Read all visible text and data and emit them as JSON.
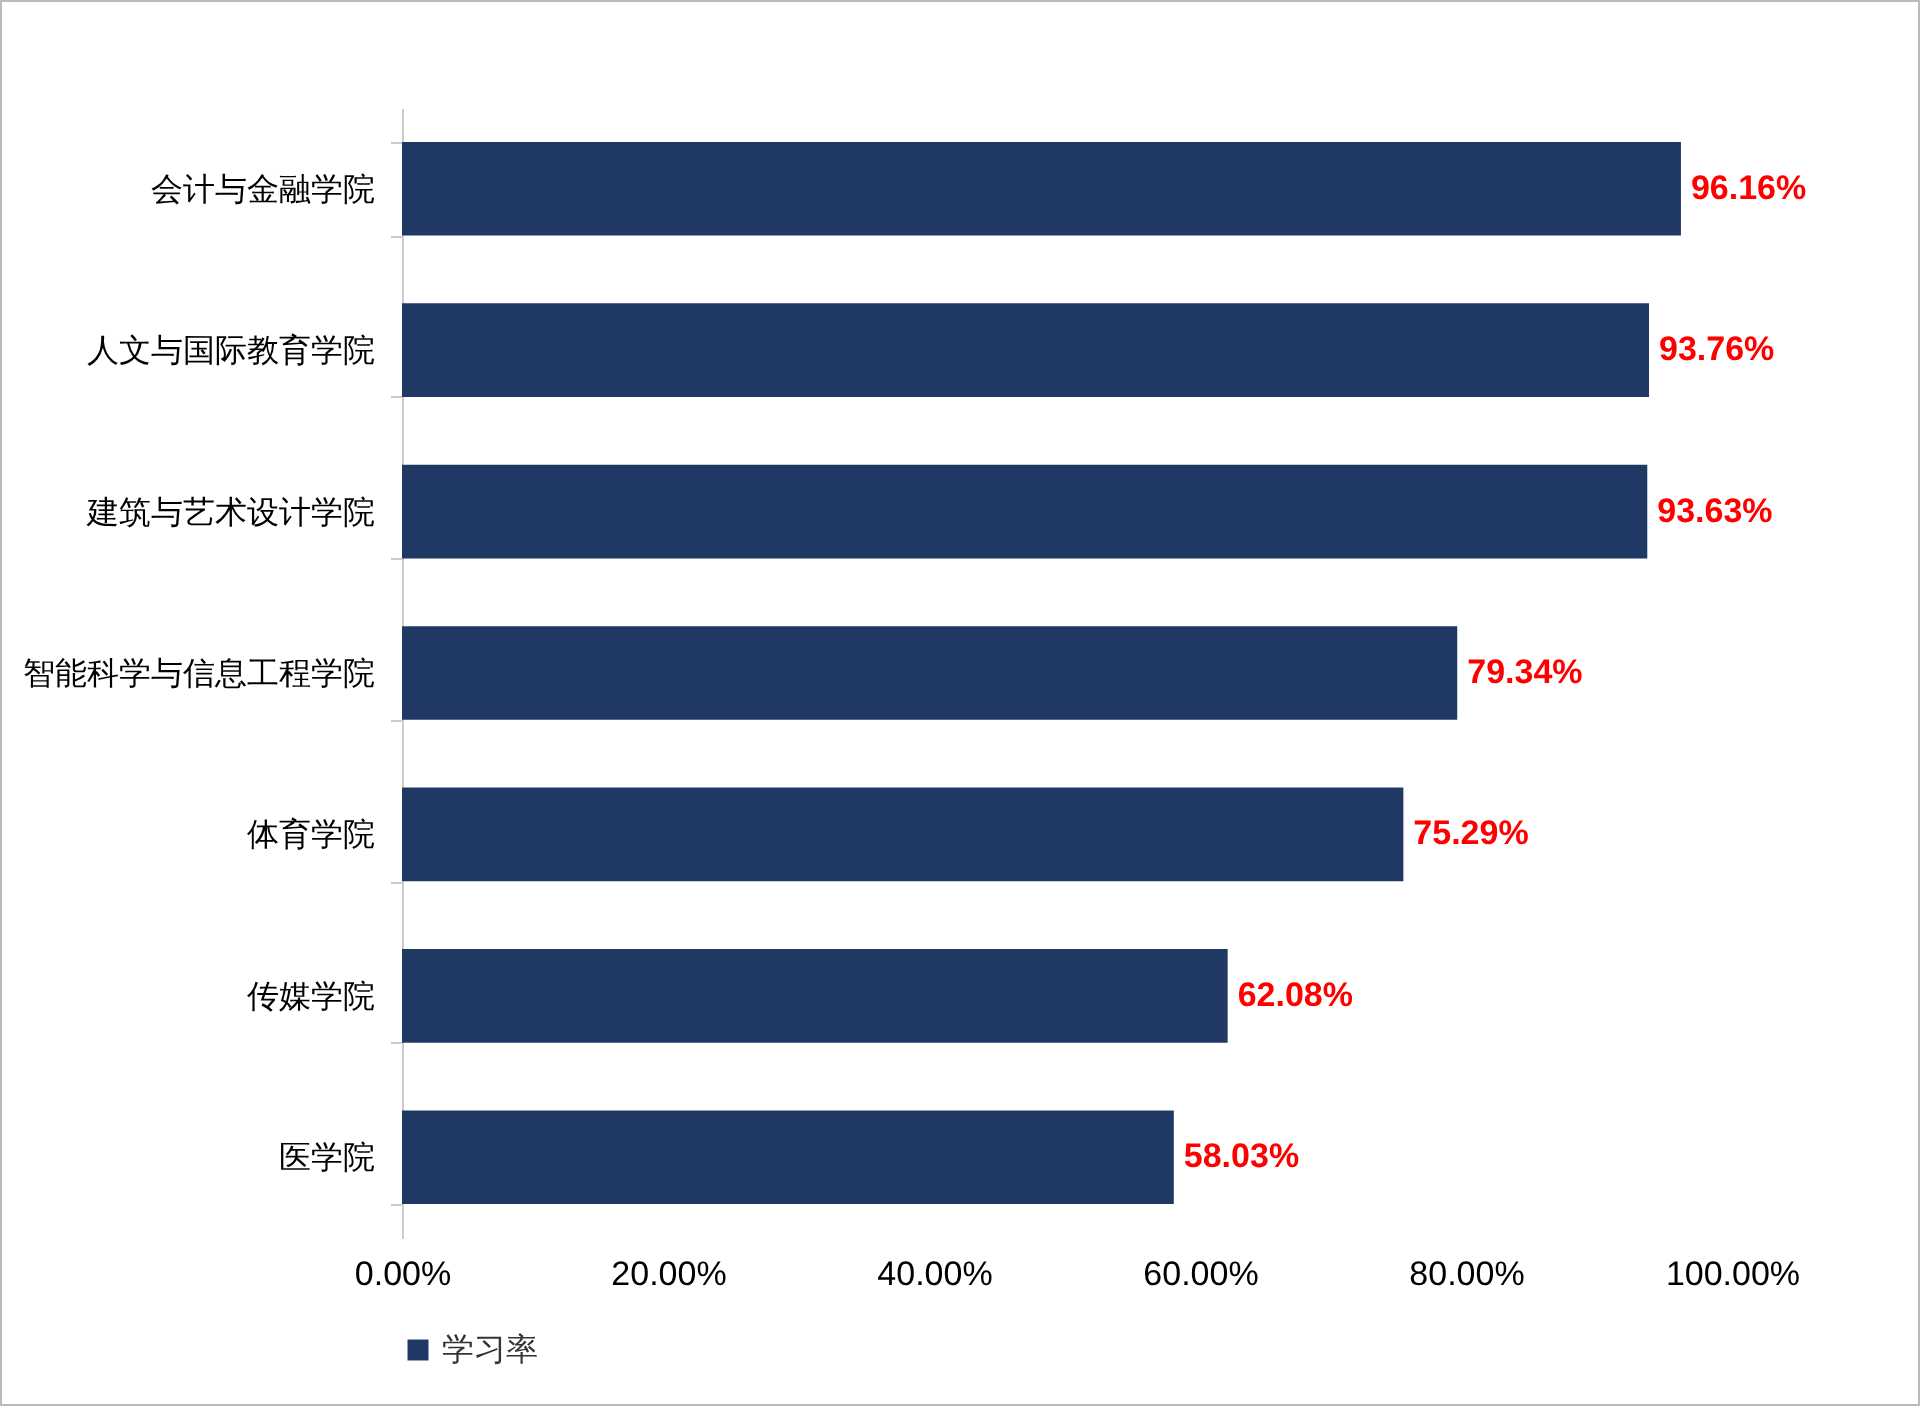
{
  "chart_data": {
    "type": "bar",
    "orientation": "horizontal",
    "categories": [
      "会计与金融学院",
      "人文与国际教育学院",
      "建筑与艺术设计学院",
      "智能科学与信息工程学院",
      "体育学院",
      "传媒学院",
      "医学院"
    ],
    "series": [
      {
        "name": "学习率",
        "color": "#203864",
        "values": [
          96.16,
          93.76,
          93.63,
          79.34,
          75.29,
          62.08,
          58.03
        ],
        "value_labels": [
          "96.16%",
          "93.76%",
          "93.63%",
          "79.34%",
          "75.29%",
          "62.08%",
          "58.03%"
        ]
      }
    ],
    "xlim": [
      0,
      100
    ],
    "xticks": [
      {
        "value": 0,
        "label": "0.00%"
      },
      {
        "value": 20,
        "label": "20.00%"
      },
      {
        "value": 40,
        "label": "40.00%"
      },
      {
        "value": 60,
        "label": "60.00%"
      },
      {
        "value": 80,
        "label": "80.00%"
      },
      {
        "value": 100,
        "label": "100.00%"
      }
    ],
    "grid": false,
    "legend": "bottom"
  }
}
